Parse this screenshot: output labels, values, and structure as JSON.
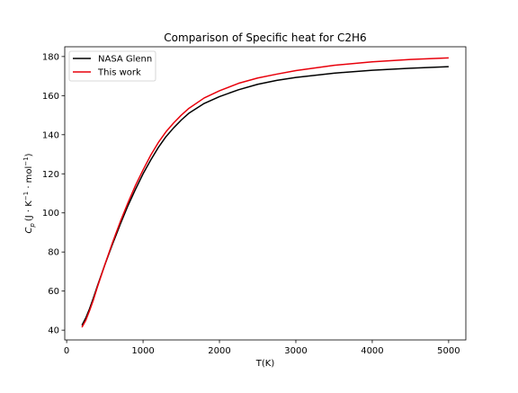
{
  "chart_data": {
    "type": "line",
    "title": "Comparison of Specific heat for C2H6",
    "xlabel": "T(K)",
    "ylabel_main": "C",
    "ylabel_sub": "p",
    "ylabel_units_prefix": "(J · K",
    "ylabel_units_sup1": "−1",
    "ylabel_units_mid": " · mol",
    "ylabel_units_sup2": "−1",
    "ylabel_units_suffix": ")",
    "xlim": [
      -25,
      5225
    ],
    "ylim": [
      35,
      185
    ],
    "xticks": [
      0,
      1000,
      2000,
      3000,
      4000,
      5000
    ],
    "yticks": [
      40,
      60,
      80,
      100,
      120,
      140,
      160,
      180
    ],
    "legend_position": "upper-left",
    "grid": false,
    "series": [
      {
        "name": "NASA Glenn",
        "color": "#000000",
        "x": [
          200,
          250,
          300,
          350,
          400,
          500,
          600,
          700,
          800,
          900,
          1000,
          1100,
          1200,
          1300,
          1400,
          1500,
          1600,
          1800,
          2000,
          2250,
          2500,
          2750,
          3000,
          3500,
          4000,
          4500,
          5000
        ],
        "y": [
          42.5,
          46.2,
          51.0,
          56.5,
          62.3,
          73.5,
          84.0,
          94.0,
          103.5,
          112.0,
          120.0,
          127.0,
          133.5,
          139.0,
          143.5,
          147.5,
          151.0,
          156.0,
          159.5,
          163.0,
          165.8,
          167.8,
          169.3,
          171.5,
          173.0,
          174.0,
          174.8
        ]
      },
      {
        "name": "This work",
        "color": "#e8000b",
        "x": [
          200,
          250,
          300,
          350,
          400,
          500,
          600,
          700,
          800,
          900,
          1000,
          1100,
          1200,
          1300,
          1400,
          1500,
          1600,
          1800,
          2000,
          2250,
          2500,
          2750,
          3000,
          3500,
          4000,
          4500,
          5000
        ],
        "y": [
          41.5,
          45.0,
          50.0,
          55.5,
          61.8,
          73.5,
          84.8,
          95.3,
          105.0,
          114.0,
          122.0,
          129.5,
          136.0,
          141.5,
          146.0,
          150.0,
          153.5,
          158.8,
          162.5,
          166.3,
          169.0,
          171.0,
          172.8,
          175.5,
          177.3,
          178.5,
          179.3
        ]
      }
    ]
  }
}
